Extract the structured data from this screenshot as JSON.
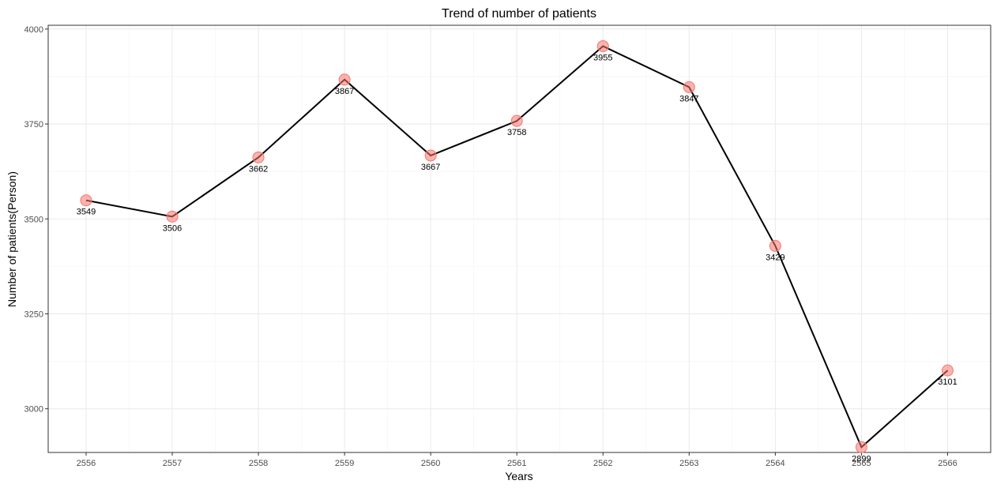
{
  "chart_data": {
    "type": "line",
    "title": "Trend of number of patients",
    "xlabel": "Years",
    "ylabel": "Number of patients(Person)",
    "x": [
      2556,
      2557,
      2558,
      2559,
      2560,
      2561,
      2562,
      2563,
      2564,
      2565,
      2566
    ],
    "values": [
      3549,
      3506,
      3662,
      3867,
      3667,
      3758,
      3955,
      3847,
      3429,
      2899,
      3101
    ],
    "xlim": [
      2555.56,
      2566.5
    ],
    "ylim": [
      2885,
      4010
    ],
    "yticks": [
      3000,
      3250,
      3500,
      3750,
      4000
    ],
    "grid": true,
    "colors": {
      "marker_fill": "#f8766d",
      "line": "#000000"
    }
  }
}
